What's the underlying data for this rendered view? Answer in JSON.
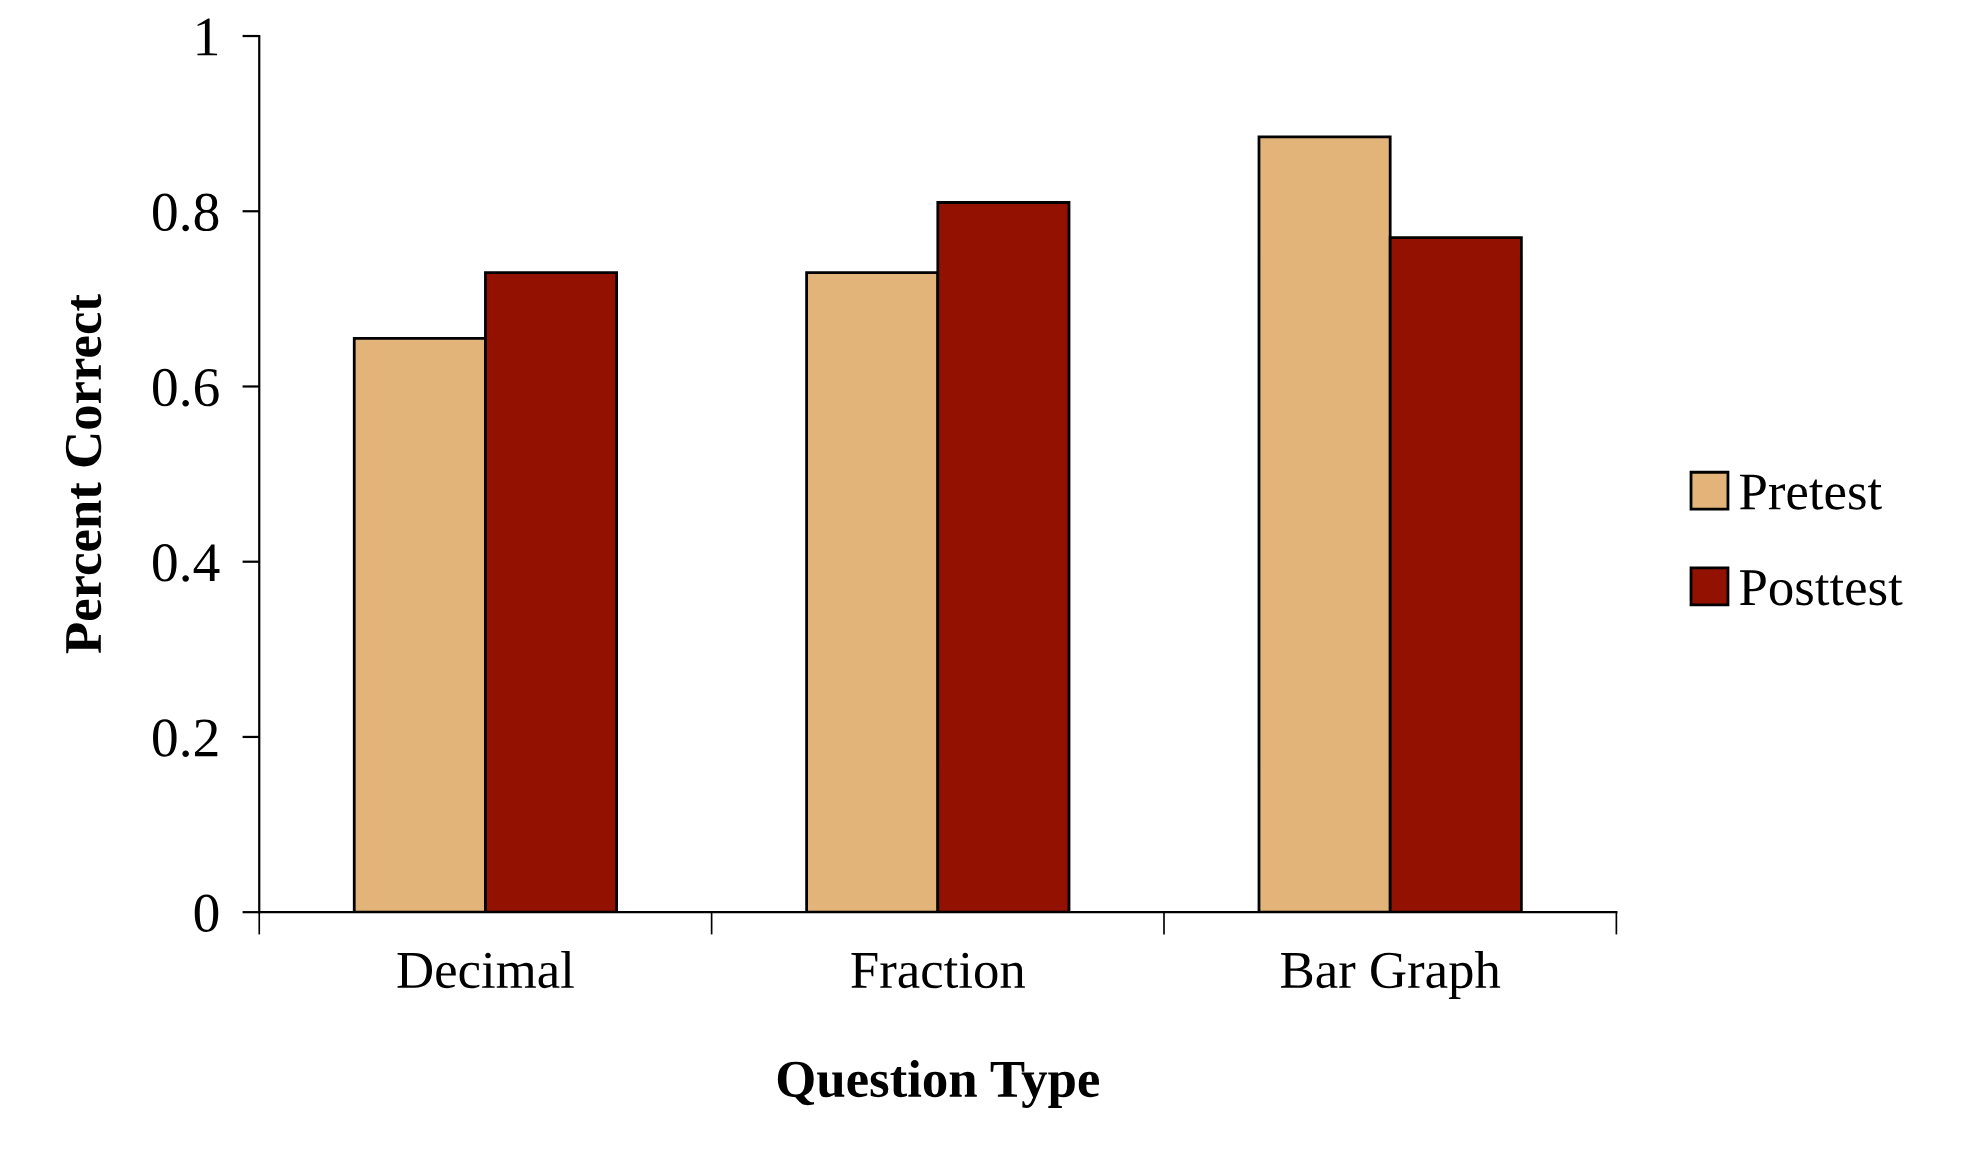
{
  "chart_data": {
    "type": "bar",
    "xlabel": "Question Type",
    "ylabel": "Percent Correct",
    "categories": [
      "Decimal",
      "Fraction",
      "Bar Graph"
    ],
    "series": [
      {
        "name": "Pretest",
        "color": "#e2b47a",
        "values": [
          0.655,
          0.73,
          0.885
        ]
      },
      {
        "name": "Posttest",
        "color": "#921100",
        "values": [
          0.73,
          0.81,
          0.77
        ]
      }
    ],
    "ylim": [
      0,
      1
    ],
    "yticks": [
      0,
      0.2,
      0.4,
      0.6,
      0.8,
      1
    ],
    "grid": false,
    "legend": "right"
  }
}
